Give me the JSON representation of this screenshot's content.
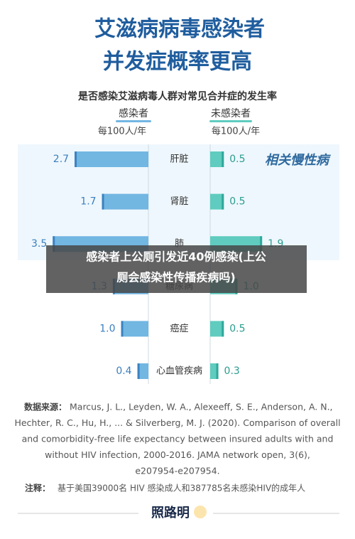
{
  "chart_data": {
    "type": "butterfly",
    "title": [
      "艾滋病病毒感染者",
      "并发症概率更高"
    ],
    "subtitle": "是否感染艾滋病毒人群对常见合并症的发生率",
    "unit": "每100人/年",
    "annotation": "相关慢性病",
    "categories": [
      "肝脏",
      "肾脏",
      "肺",
      "糖尿病",
      "癌症",
      "心血管疾病"
    ],
    "series": [
      {
        "name": "感染者",
        "color": "#72b6e2",
        "values": [
          2.7,
          1.7,
          3.5,
          1.3,
          1.0,
          0.4
        ],
        "value_labels": [
          "2.7",
          "1.7",
          "3.5",
          "1.3",
          "1.0",
          "0.4"
        ]
      },
      {
        "name": "未感染者",
        "color": "#5fccbf",
        "values": [
          0.5,
          0.5,
          1.9,
          1.0,
          0.5,
          0.3
        ],
        "value_labels": [
          "0.5",
          "0.5",
          "1.9",
          "1.0",
          "0.5",
          "0.3"
        ]
      }
    ],
    "source_label": "数据来源：",
    "source": [
      "Marcus, J. L., Leyden, W. A., Alexeeff, S. E., Anderson, A. N.,",
      "Hechter, R. C., Hu, H., ... & Silverberg, M. J. (2020). Comparison of overall",
      "and comorbidity-free life expectancy between insured adults with and",
      "without HIV infection, 2000-2016. JAMA network open, 3(6),",
      "e207954-e207954."
    ],
    "note_label": "注释：",
    "note": "基于美国39000名 HIV 感染成人和387785名未感染HIV的成年人",
    "logo": "照路明"
  },
  "overlay": {
    "text": [
      "感染者上公厕引发近40例感染(上公",
      "厕会感染性传播疾病吗)"
    ]
  }
}
